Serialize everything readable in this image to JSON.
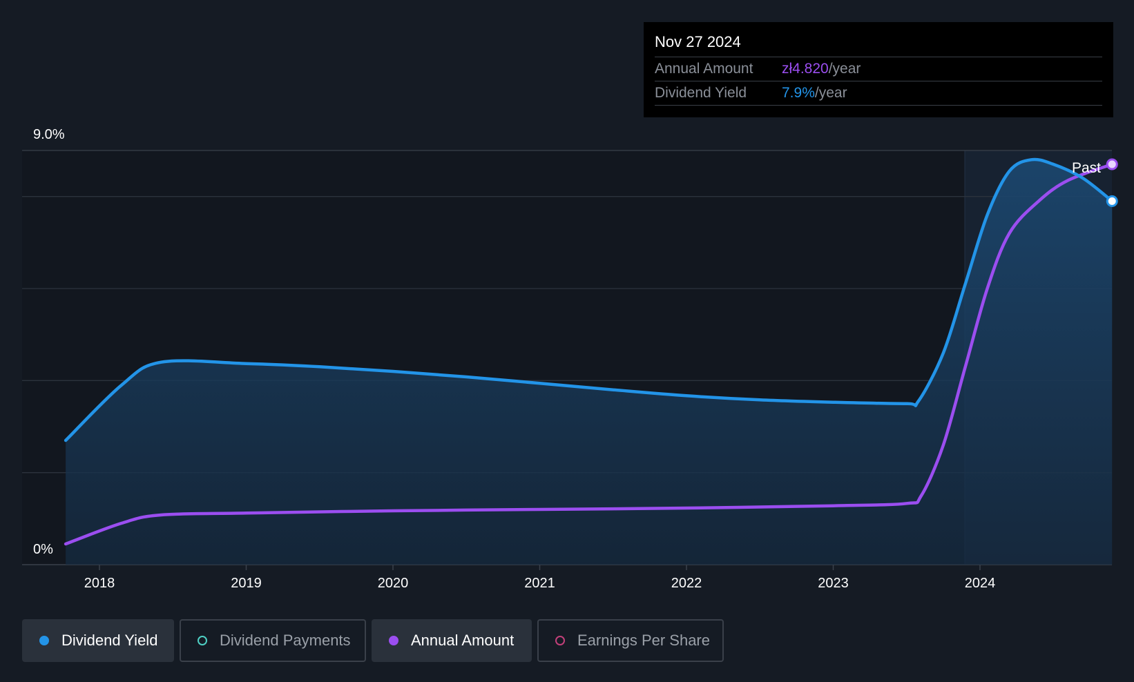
{
  "colors": {
    "yield": "#2394e8",
    "annual": "#9b4ef0",
    "payments": "#4fd1c5",
    "eps": "#c2407a",
    "grid": "#2c333d",
    "axis_text": "#ffffff"
  },
  "tooltip": {
    "date": "Nov 27 2024",
    "annual_label": "Annual Amount",
    "annual_value": "zł4.820",
    "annual_unit": "/year",
    "yield_label": "Dividend Yield",
    "yield_value": "7.9%",
    "yield_unit": "/year"
  },
  "chart_data": {
    "type": "line",
    "y_top_label": "9.0%",
    "y_bottom_label": "0%",
    "ylim": [
      0,
      9.0
    ],
    "past_label": "Past",
    "x_ticks": [
      "2018",
      "2019",
      "2020",
      "2021",
      "2022",
      "2023",
      "2024"
    ],
    "series": [
      {
        "name": "Dividend Yield",
        "key": "yield",
        "x": [
          2017.77,
          2018.15,
          2018.42,
          2019.0,
          2019.5,
          2020.0,
          2020.5,
          2021.0,
          2021.5,
          2022.0,
          2022.5,
          2023.0,
          2023.5,
          2023.58,
          2023.75,
          2023.9,
          2024.05,
          2024.2,
          2024.35,
          2024.5,
          2024.7,
          2024.9
        ],
        "values": [
          2.7,
          3.9,
          4.4,
          4.37,
          4.3,
          4.2,
          4.08,
          3.94,
          3.8,
          3.67,
          3.58,
          3.53,
          3.5,
          3.55,
          4.6,
          6.1,
          7.6,
          8.55,
          8.8,
          8.7,
          8.4,
          7.9
        ]
      },
      {
        "name": "Annual Amount",
        "key": "annual",
        "x": [
          2017.77,
          2018.15,
          2018.42,
          2019.0,
          2020.0,
          2021.0,
          2022.0,
          2023.0,
          2023.5,
          2023.6,
          2023.75,
          2023.9,
          2024.05,
          2024.2,
          2024.4,
          2024.6,
          2024.9
        ],
        "values": [
          0.45,
          0.9,
          1.08,
          1.12,
          1.17,
          1.2,
          1.23,
          1.28,
          1.33,
          1.5,
          2.6,
          4.3,
          6.0,
          7.2,
          7.9,
          8.35,
          8.7
        ]
      }
    ]
  },
  "legend": [
    {
      "label": "Dividend Yield",
      "key": "yield",
      "active": true
    },
    {
      "label": "Dividend Payments",
      "key": "payments",
      "active": false
    },
    {
      "label": "Annual Amount",
      "key": "annual",
      "active": true
    },
    {
      "label": "Earnings Per Share",
      "key": "eps",
      "active": false
    }
  ]
}
